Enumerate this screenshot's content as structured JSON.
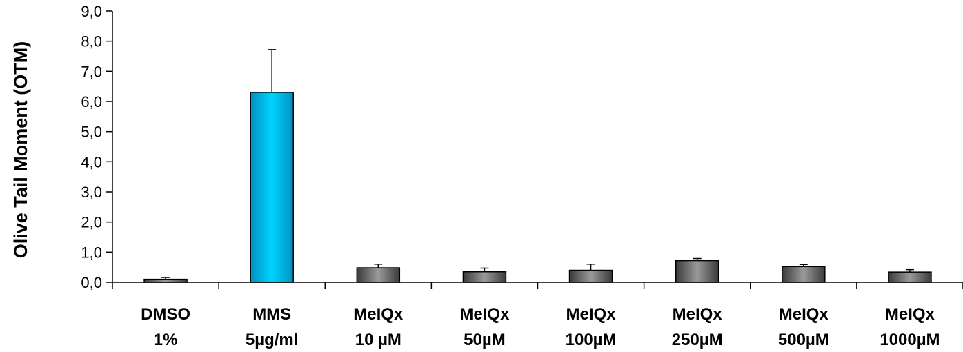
{
  "chart_data": {
    "type": "bar",
    "title": "",
    "xlabel": "",
    "ylabel": "Olive Tail Moment (OTM)",
    "ylim": [
      0,
      9
    ],
    "ytick_step": 1,
    "ytick_labels": [
      "0,0",
      "1,0",
      "2,0",
      "3,0",
      "4,0",
      "5,0",
      "6,0",
      "7,0",
      "8,0",
      "9,0"
    ],
    "grid": false,
    "legend": "none",
    "categories": [
      [
        "DMSO",
        "1%"
      ],
      [
        "MMS",
        "5µg/ml"
      ],
      [
        "MeIQx",
        "10 µM"
      ],
      [
        "MeIQx",
        "50µM"
      ],
      [
        "MeIQx",
        "100µM"
      ],
      [
        "MeIQx",
        "250µM"
      ],
      [
        "MeIQx",
        "500µM"
      ],
      [
        "MeIQx",
        "1000µM"
      ]
    ],
    "values": [
      0.1,
      6.3,
      0.48,
      0.35,
      0.4,
      0.72,
      0.52,
      0.34
    ],
    "errors": [
      0.06,
      1.42,
      0.12,
      0.12,
      0.2,
      0.07,
      0.07,
      0.08
    ],
    "colors": {
      "highlight": "#00c8f0",
      "default": "#7a7a7a",
      "outline": "#000000"
    },
    "highlight_index": 1
  }
}
